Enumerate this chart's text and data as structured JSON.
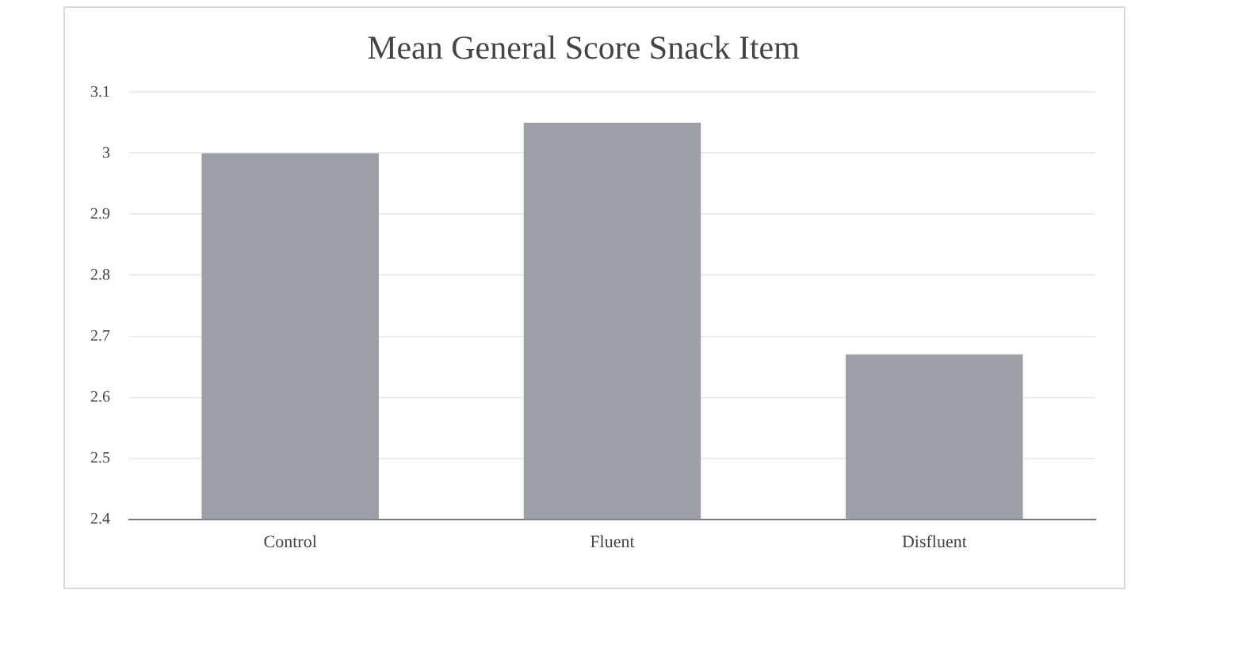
{
  "chart_data": {
    "type": "bar",
    "title": "Mean General Score Snack Item",
    "categories": [
      "Control",
      "Fluent",
      "Disfluent"
    ],
    "values": [
      3.0,
      3.05,
      2.67
    ],
    "color": "#9c9fa8",
    "ylim": [
      2.4,
      3.1
    ],
    "yticks": [
      {
        "value": 2.4,
        "label": "2.4"
      },
      {
        "value": 2.5,
        "label": "2.5"
      },
      {
        "value": 2.6,
        "label": "2.6"
      },
      {
        "value": 2.7,
        "label": "2.7"
      },
      {
        "value": 2.8,
        "label": "2.8"
      },
      {
        "value": 2.9,
        "label": "2.9"
      },
      {
        "value": 3.0,
        "label": "3"
      },
      {
        "value": 3.1,
        "label": "3.1"
      }
    ],
    "grid": "y"
  }
}
